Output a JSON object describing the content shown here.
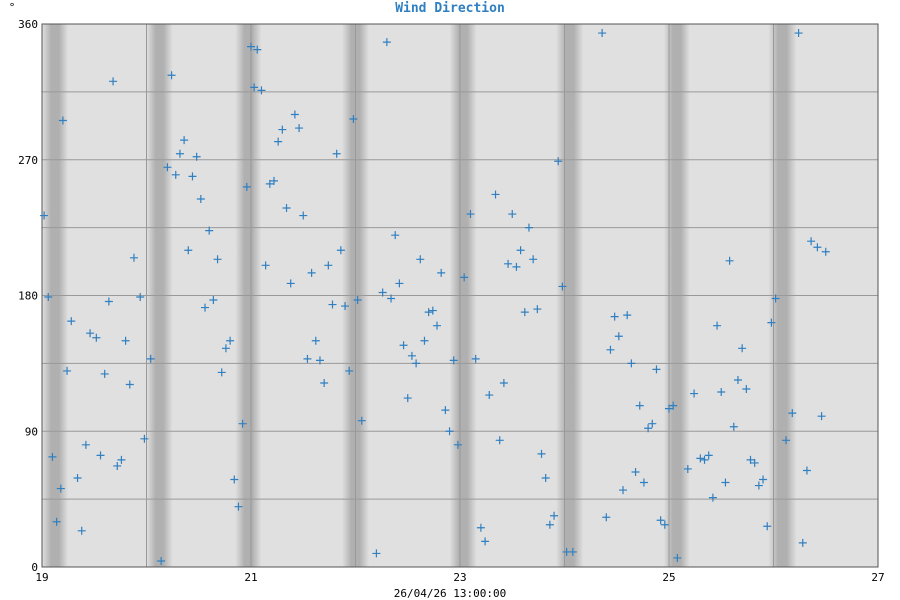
{
  "chart_data": {
    "type": "scatter",
    "title": "Wind Direction",
    "xlabel": "26/04/26 13:00:00",
    "ylabel": "°",
    "x_unit": "day of month (April 2026)",
    "xlim": [
      19,
      27
    ],
    "ylim": [
      0,
      360
    ],
    "x_ticks": [
      19,
      21,
      23,
      25,
      27
    ],
    "y_ticks": [
      0,
      90,
      180,
      270,
      360
    ],
    "y_gridlines": [
      0,
      45,
      90,
      135,
      180,
      225,
      270,
      315,
      360
    ],
    "x_gridlines": [
      20,
      21,
      22,
      23,
      24,
      25,
      26
    ],
    "grid": true,
    "marker": "+",
    "colors": {
      "marker": "#2f7fc1",
      "title": "#2f7fc1",
      "plot_bg": "#e0e0e0",
      "night_band": "#b0b0b0",
      "grid": "#999999"
    },
    "night_bands": [
      [
        19.0,
        19.25
      ],
      [
        20.0,
        20.25
      ],
      [
        20.85,
        21.1
      ],
      [
        21.87,
        22.13
      ],
      [
        22.9,
        23.16
      ],
      [
        23.92,
        24.18
      ],
      [
        24.95,
        25.2
      ],
      [
        25.95,
        26.22
      ]
    ],
    "series": [
      {
        "points": [
          [
            19.02,
            233
          ],
          [
            19.06,
            179
          ],
          [
            19.1,
            73
          ],
          [
            19.14,
            30
          ],
          [
            19.18,
            52
          ],
          [
            19.2,
            296
          ],
          [
            19.24,
            130
          ],
          [
            19.28,
            163
          ],
          [
            19.34,
            59
          ],
          [
            19.38,
            24
          ],
          [
            19.42,
            81
          ],
          [
            19.46,
            155
          ],
          [
            19.52,
            152
          ],
          [
            19.56,
            74
          ],
          [
            19.6,
            128
          ],
          [
            19.64,
            176
          ],
          [
            19.68,
            322
          ],
          [
            19.72,
            67
          ],
          [
            19.76,
            71
          ],
          [
            19.8,
            150
          ],
          [
            19.84,
            121
          ],
          [
            19.88,
            205
          ],
          [
            19.94,
            179
          ],
          [
            19.98,
            85
          ],
          [
            20.04,
            138
          ],
          [
            20.14,
            4
          ],
          [
            20.2,
            265
          ],
          [
            20.24,
            326
          ],
          [
            20.28,
            260
          ],
          [
            20.32,
            274
          ],
          [
            20.36,
            283
          ],
          [
            20.4,
            210
          ],
          [
            20.44,
            259
          ],
          [
            20.48,
            272
          ],
          [
            20.52,
            244
          ],
          [
            20.56,
            172
          ],
          [
            20.6,
            223
          ],
          [
            20.64,
            177
          ],
          [
            20.68,
            204
          ],
          [
            20.72,
            129
          ],
          [
            20.76,
            145
          ],
          [
            20.8,
            150
          ],
          [
            20.84,
            58
          ],
          [
            20.88,
            40
          ],
          [
            20.92,
            95
          ],
          [
            20.96,
            252
          ],
          [
            21.0,
            345
          ],
          [
            21.03,
            318
          ],
          [
            21.06,
            343
          ],
          [
            21.1,
            316
          ],
          [
            21.14,
            200
          ],
          [
            21.18,
            254
          ],
          [
            21.22,
            256
          ],
          [
            21.26,
            282
          ],
          [
            21.3,
            290
          ],
          [
            21.34,
            238
          ],
          [
            21.38,
            188
          ],
          [
            21.42,
            300
          ],
          [
            21.46,
            291
          ],
          [
            21.5,
            233
          ],
          [
            21.54,
            138
          ],
          [
            21.58,
            195
          ],
          [
            21.62,
            150
          ],
          [
            21.66,
            137
          ],
          [
            21.7,
            122
          ],
          [
            21.74,
            200
          ],
          [
            21.78,
            174
          ],
          [
            21.82,
            274
          ],
          [
            21.86,
            210
          ],
          [
            21.9,
            173
          ],
          [
            21.94,
            130
          ],
          [
            21.98,
            297
          ],
          [
            22.02,
            177
          ],
          [
            22.06,
            97
          ],
          [
            22.2,
            9
          ],
          [
            22.26,
            182
          ],
          [
            22.3,
            348
          ],
          [
            22.34,
            178
          ],
          [
            22.38,
            220
          ],
          [
            22.42,
            188
          ],
          [
            22.46,
            147
          ],
          [
            22.5,
            112
          ],
          [
            22.54,
            140
          ],
          [
            22.58,
            135
          ],
          [
            22.62,
            204
          ],
          [
            22.66,
            150
          ],
          [
            22.7,
            169
          ],
          [
            22.74,
            170
          ],
          [
            22.78,
            160
          ],
          [
            22.82,
            195
          ],
          [
            22.86,
            104
          ],
          [
            22.9,
            90
          ],
          [
            22.94,
            137
          ],
          [
            22.98,
            81
          ],
          [
            23.04,
            192
          ],
          [
            23.1,
            234
          ],
          [
            23.15,
            138
          ],
          [
            23.2,
            26
          ],
          [
            23.24,
            17
          ],
          [
            23.28,
            114
          ],
          [
            23.34,
            247
          ],
          [
            23.38,
            84
          ],
          [
            23.42,
            122
          ],
          [
            23.46,
            201
          ],
          [
            23.5,
            234
          ],
          [
            23.54,
            199
          ],
          [
            23.58,
            210
          ],
          [
            23.62,
            169
          ],
          [
            23.66,
            225
          ],
          [
            23.7,
            204
          ],
          [
            23.74,
            171
          ],
          [
            23.78,
            75
          ],
          [
            23.82,
            59
          ],
          [
            23.86,
            28
          ],
          [
            23.9,
            34
          ],
          [
            23.94,
            269
          ],
          [
            23.98,
            186
          ],
          [
            24.02,
            10
          ],
          [
            24.08,
            10
          ],
          [
            24.36,
            354
          ],
          [
            24.4,
            33
          ],
          [
            24.44,
            144
          ],
          [
            24.48,
            166
          ],
          [
            24.52,
            153
          ],
          [
            24.56,
            51
          ],
          [
            24.6,
            167
          ],
          [
            24.64,
            135
          ],
          [
            24.68,
            63
          ],
          [
            24.72,
            107
          ],
          [
            24.76,
            56
          ],
          [
            24.8,
            92
          ],
          [
            24.84,
            95
          ],
          [
            24.88,
            131
          ],
          [
            24.92,
            31
          ],
          [
            24.96,
            28
          ],
          [
            25.0,
            105
          ],
          [
            25.04,
            107
          ],
          [
            25.08,
            6
          ],
          [
            25.18,
            65
          ],
          [
            25.24,
            115
          ],
          [
            25.3,
            72
          ],
          [
            25.34,
            71
          ],
          [
            25.38,
            74
          ],
          [
            25.42,
            46
          ],
          [
            25.46,
            160
          ],
          [
            25.5,
            116
          ],
          [
            25.54,
            56
          ],
          [
            25.58,
            203
          ],
          [
            25.62,
            93
          ],
          [
            25.66,
            124
          ],
          [
            25.7,
            145
          ],
          [
            25.74,
            118
          ],
          [
            25.78,
            71
          ],
          [
            25.82,
            69
          ],
          [
            25.86,
            54
          ],
          [
            25.9,
            58
          ],
          [
            25.94,
            27
          ],
          [
            25.98,
            162
          ],
          [
            26.02,
            178
          ],
          [
            26.12,
            84
          ],
          [
            26.18,
            102
          ],
          [
            26.24,
            354
          ],
          [
            26.28,
            16
          ],
          [
            26.32,
            64
          ],
          [
            26.36,
            216
          ],
          [
            26.42,
            212
          ],
          [
            26.46,
            100
          ],
          [
            26.5,
            209
          ]
        ]
      }
    ]
  }
}
